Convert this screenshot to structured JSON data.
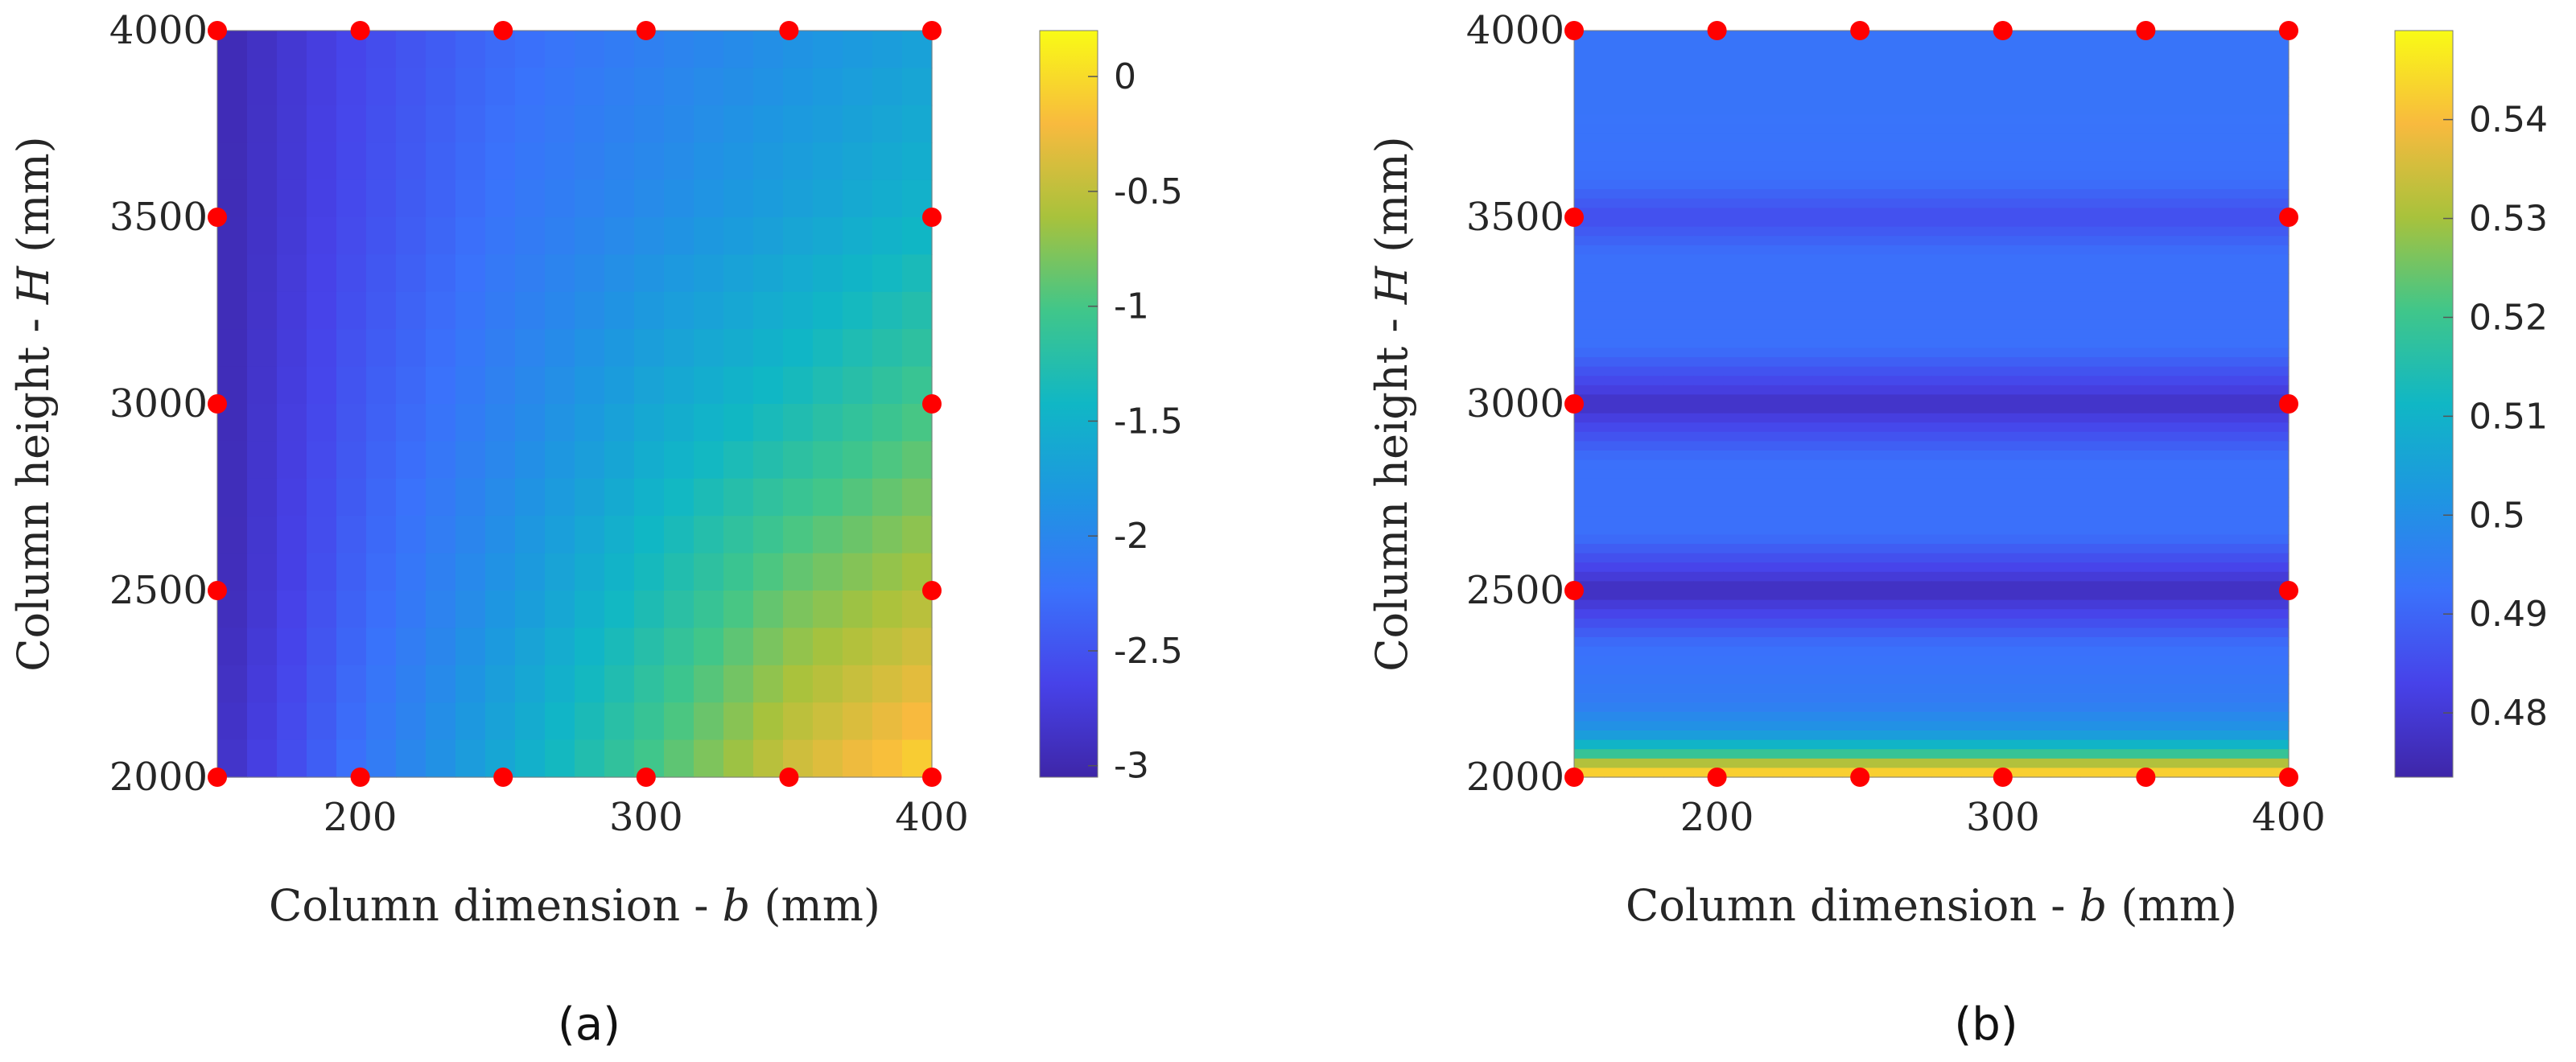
{
  "chart_data": [
    {
      "type": "heatmap",
      "panel_label": "(a)",
      "xlabel": "Column dimension - b (mm)",
      "xlabel_parts": {
        "before": "Column dimension - ",
        "var": "b",
        "after": " (mm)"
      },
      "ylabel": "Column height - H (mm)",
      "ylabel_parts": {
        "before": "Column height - ",
        "var": "H",
        "after": " (mm)"
      },
      "xlim": [
        150,
        400
      ],
      "ylim": [
        2000,
        4000
      ],
      "xticks": [
        200,
        300,
        400
      ],
      "yticks": [
        2000,
        2500,
        3000,
        3500,
        4000
      ],
      "colorbar": {
        "range": [
          -3.05,
          0.2
        ],
        "ticks": [
          0,
          -0.5,
          -1,
          -1.5,
          -2,
          -2.5,
          -3
        ],
        "tick_labels": [
          "0",
          "-0.5",
          "-1",
          "-1.5",
          "-2",
          "-2.5",
          "-3"
        ]
      },
      "grid_x": [
        150,
        200,
        250,
        300,
        350,
        400
      ],
      "grid_y": [
        2000,
        2500,
        3000,
        3500,
        4000
      ],
      "z_grid": [
        [
          -2.9,
          -2.2,
          -1.6,
          -1.0,
          -0.4,
          0.0
        ],
        [
          -3.0,
          -2.35,
          -1.85,
          -1.35,
          -0.85,
          -0.55
        ],
        [
          -3.0,
          -2.45,
          -2.05,
          -1.65,
          -1.35,
          -1.0
        ],
        [
          -3.0,
          -2.55,
          -2.2,
          -1.95,
          -1.7,
          -1.45
        ],
        [
          -3.0,
          -2.6,
          -2.3,
          -2.1,
          -1.9,
          -1.7
        ]
      ],
      "sample_points": [
        {
          "x": 150,
          "y": 4000
        },
        {
          "x": 200,
          "y": 4000
        },
        {
          "x": 250,
          "y": 4000
        },
        {
          "x": 300,
          "y": 4000
        },
        {
          "x": 350,
          "y": 4000
        },
        {
          "x": 400,
          "y": 4000
        },
        {
          "x": 150,
          "y": 3500
        },
        {
          "x": 400,
          "y": 3500
        },
        {
          "x": 150,
          "y": 3000
        },
        {
          "x": 400,
          "y": 3000
        },
        {
          "x": 150,
          "y": 2500
        },
        {
          "x": 400,
          "y": 2500
        },
        {
          "x": 150,
          "y": 2000
        },
        {
          "x": 200,
          "y": 2000
        },
        {
          "x": 250,
          "y": 2000
        },
        {
          "x": 300,
          "y": 2000
        },
        {
          "x": 350,
          "y": 2000
        },
        {
          "x": 400,
          "y": 2000
        }
      ],
      "point_color": "#ff0000"
    },
    {
      "type": "heatmap",
      "panel_label": "(b)",
      "xlabel": "Column dimension - b (mm)",
      "xlabel_parts": {
        "before": "Column dimension - ",
        "var": "b",
        "after": " (mm)"
      },
      "ylabel": "Column height - H (mm)",
      "ylabel_parts": {
        "before": "Column height - ",
        "var": "H",
        "after": " (mm)"
      },
      "xlim": [
        150,
        400
      ],
      "ylim": [
        2000,
        4000
      ],
      "xticks": [
        200,
        300,
        400
      ],
      "yticks": [
        2000,
        2500,
        3000,
        3500,
        4000
      ],
      "colorbar": {
        "range": [
          0.4735,
          0.549
        ],
        "ticks": [
          0.54,
          0.53,
          0.52,
          0.51,
          0.5,
          0.49,
          0.48
        ],
        "tick_labels": [
          "0.54",
          "0.53",
          "0.52",
          "0.51",
          "0.5",
          "0.49",
          "0.48"
        ]
      },
      "row_profile": [
        {
          "y": 2000,
          "v": 0.548
        },
        {
          "y": 2030,
          "v": 0.535
        },
        {
          "y": 2070,
          "v": 0.515
        },
        {
          "y": 2120,
          "v": 0.502
        },
        {
          "y": 2200,
          "v": 0.495
        },
        {
          "y": 2350,
          "v": 0.492
        },
        {
          "y": 2450,
          "v": 0.482
        },
        {
          "y": 2500,
          "v": 0.476
        },
        {
          "y": 2550,
          "v": 0.482
        },
        {
          "y": 2650,
          "v": 0.492
        },
        {
          "y": 2850,
          "v": 0.492
        },
        {
          "y": 2950,
          "v": 0.483
        },
        {
          "y": 3000,
          "v": 0.477
        },
        {
          "y": 3050,
          "v": 0.483
        },
        {
          "y": 3150,
          "v": 0.492
        },
        {
          "y": 3400,
          "v": 0.492
        },
        {
          "y": 3500,
          "v": 0.485
        },
        {
          "y": 3600,
          "v": 0.492
        },
        {
          "y": 3800,
          "v": 0.493
        },
        {
          "y": 4000,
          "v": 0.493
        }
      ],
      "sample_points": [
        {
          "x": 150,
          "y": 4000
        },
        {
          "x": 200,
          "y": 4000
        },
        {
          "x": 250,
          "y": 4000
        },
        {
          "x": 300,
          "y": 4000
        },
        {
          "x": 350,
          "y": 4000
        },
        {
          "x": 400,
          "y": 4000
        },
        {
          "x": 150,
          "y": 3500
        },
        {
          "x": 400,
          "y": 3500
        },
        {
          "x": 150,
          "y": 3000
        },
        {
          "x": 400,
          "y": 3000
        },
        {
          "x": 150,
          "y": 2500
        },
        {
          "x": 400,
          "y": 2500
        },
        {
          "x": 150,
          "y": 2000
        },
        {
          "x": 200,
          "y": 2000
        },
        {
          "x": 250,
          "y": 2000
        },
        {
          "x": 300,
          "y": 2000
        },
        {
          "x": 350,
          "y": 2000
        },
        {
          "x": 400,
          "y": 2000
        }
      ],
      "point_color": "#ff0000"
    }
  ]
}
